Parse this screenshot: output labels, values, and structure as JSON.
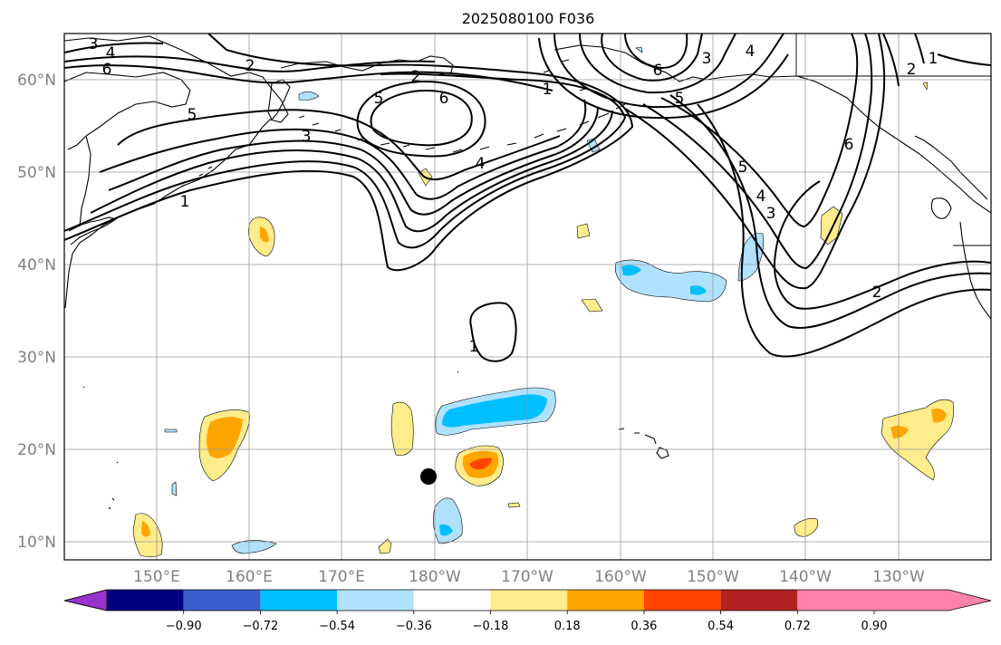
{
  "title": "2025080100 F036",
  "lat_labels": [
    "60°N",
    "50°N",
    "40°N",
    "30°N",
    "20°N",
    "10°N"
  ],
  "lon_labels": [
    "150°E",
    "160°E",
    "170°E",
    "180°W",
    "170°W",
    "160°W",
    "150°W",
    "140°W",
    "130°W"
  ],
  "colorbar": {
    "tick_labels": [
      "−0.90",
      "−0.72",
      "−0.54",
      "−0.36",
      "−0.18",
      "0.18",
      "0.36",
      "0.54",
      "0.72",
      "0.90"
    ],
    "colors": [
      "#9932cc",
      "#000080",
      "#3a5fcd",
      "#00bfff",
      "#b0e2ff",
      "#ffffff",
      "#ffec8b",
      "#ffa500",
      "#ff4500",
      "#b22222",
      "#ff82ab"
    ]
  },
  "contour_labels": [
    "3",
    "4",
    "6",
    "5",
    "2",
    "2",
    "5",
    "6",
    "1",
    "3",
    "4",
    "1",
    "6",
    "5",
    "3",
    "4",
    "2",
    "1",
    "6",
    "5",
    "4",
    "3",
    "2",
    "1"
  ],
  "colors": {
    "contour": "#000000",
    "grid": "#999999",
    "coast": "#000000",
    "storm_marker": "#000000"
  }
}
